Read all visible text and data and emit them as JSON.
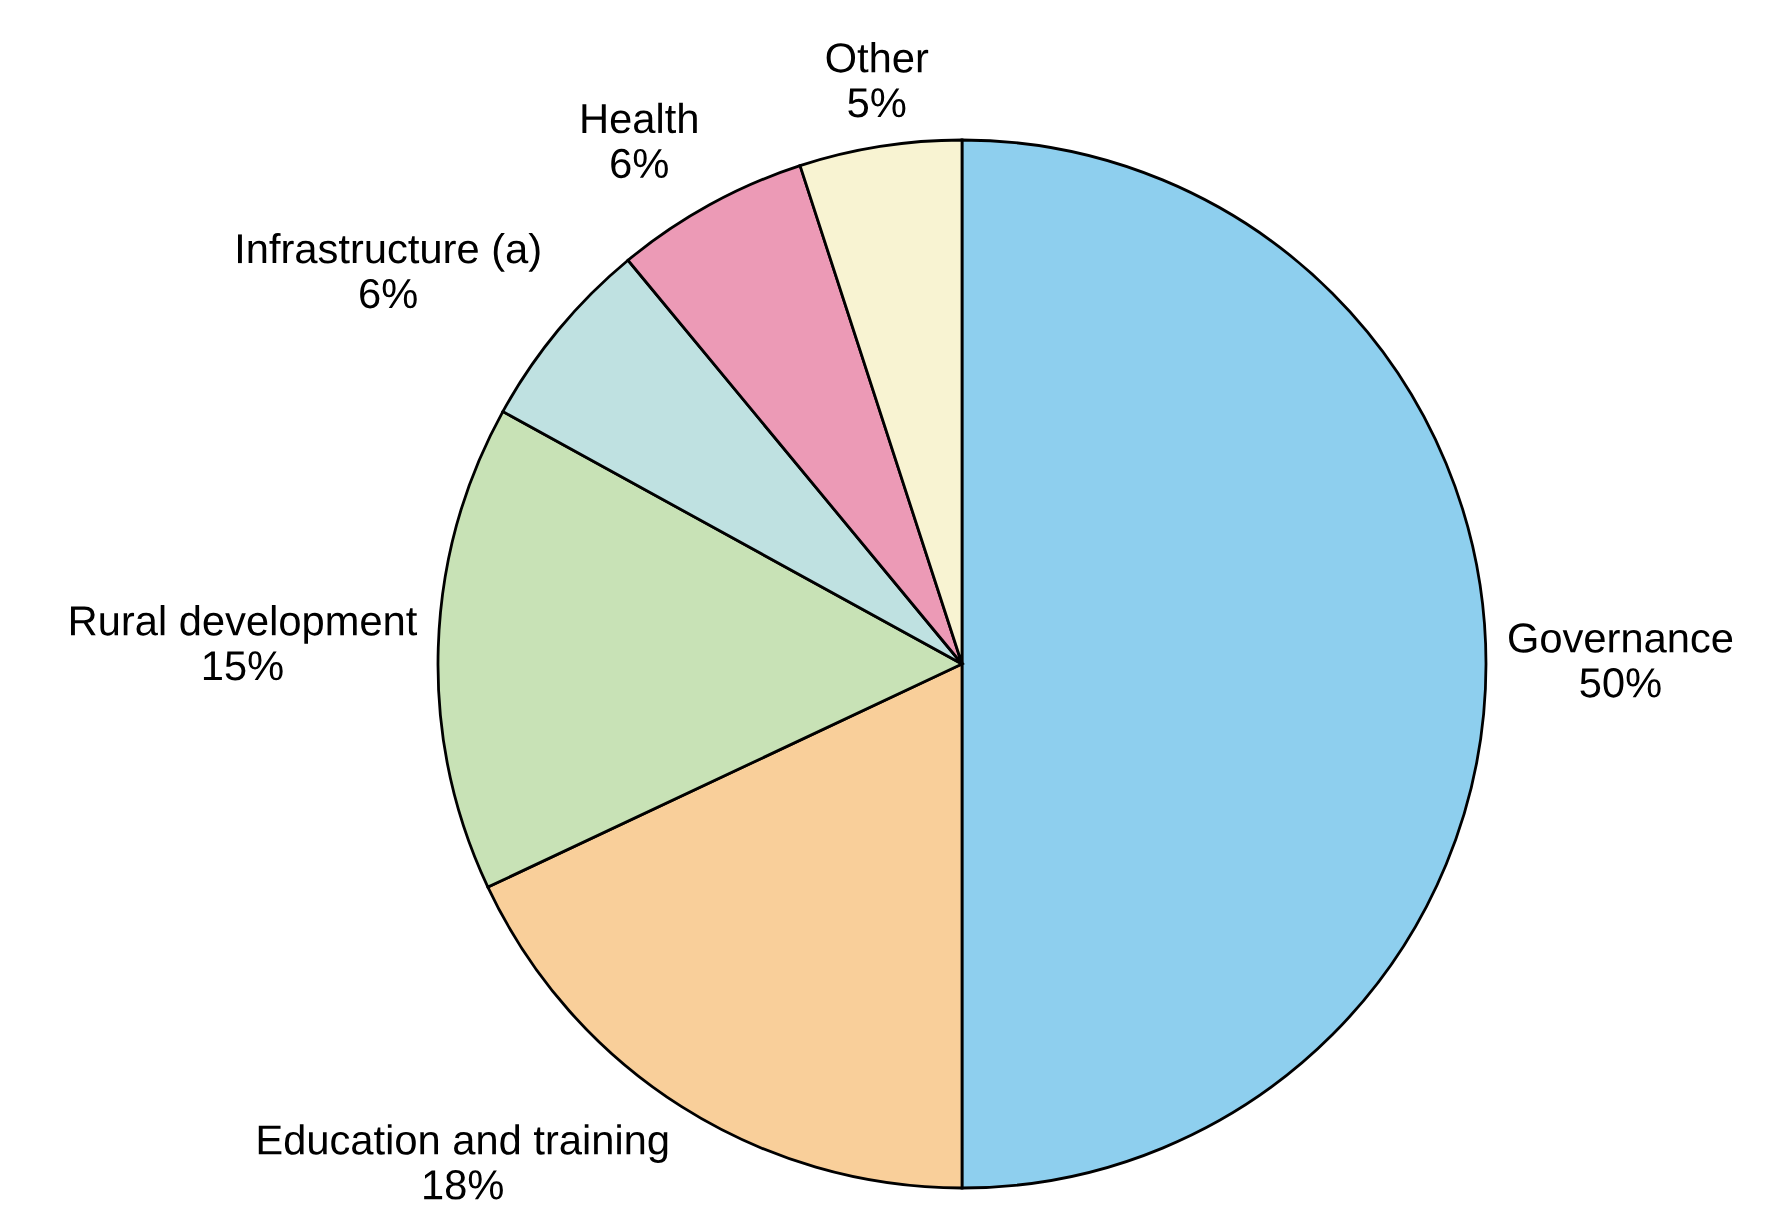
{
  "chart_data": {
    "type": "pie",
    "categories": [
      "Governance",
      "Education and training",
      "Rural development",
      "Infrastructure (a)",
      "Health",
      "Other"
    ],
    "values": [
      50,
      18,
      15,
      6,
      6,
      5
    ],
    "colors": [
      "#8ecfee",
      "#f9cf9a",
      "#c8e2b6",
      "#bfe1e1",
      "#ec9ab6",
      "#f8f3d2"
    ],
    "value_labels": [
      "50%",
      "18%",
      "15%",
      "6%",
      "6%",
      "5%"
    ]
  }
}
